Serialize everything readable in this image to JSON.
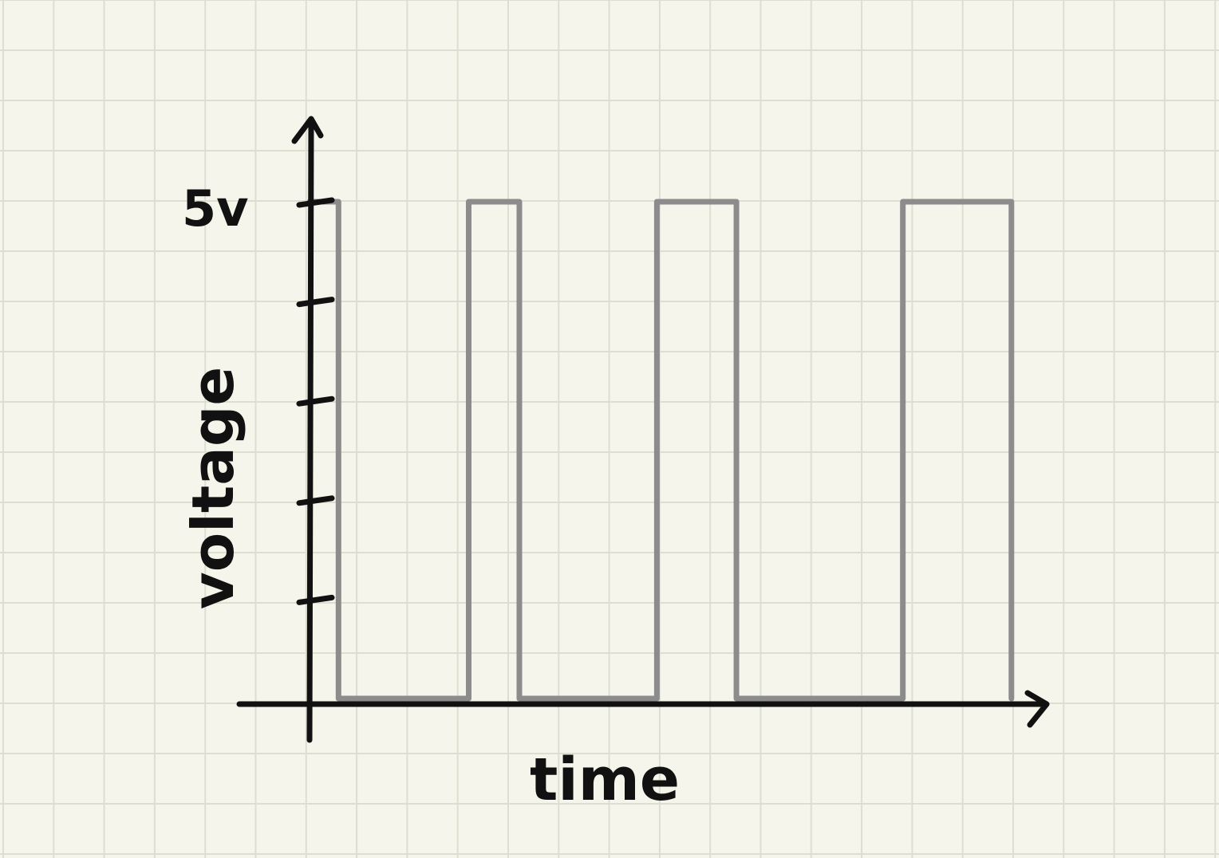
{
  "chart_data": {
    "type": "line",
    "title": "",
    "xlabel": "time",
    "ylabel": "voltage",
    "y_tick_labels": [
      {
        "value": 5,
        "label": "5v"
      }
    ],
    "y_ticks": [
      1,
      2,
      3,
      4,
      5
    ],
    "ylim": [
      0,
      5
    ],
    "xlim": [
      0,
      100
    ],
    "series": [
      {
        "x": [
          0,
          4,
          4,
          22,
          22,
          29,
          29,
          48,
          48,
          59,
          59,
          82,
          82,
          97,
          97
        ],
        "y": [
          5,
          5,
          0,
          0,
          5,
          5,
          0,
          0,
          5,
          5,
          0,
          0,
          5,
          5,
          0
        ]
      }
    ],
    "grid": true,
    "colors": {
      "background": "#f5f5eb",
      "grid": "#dcdfd0",
      "axis": "#111111",
      "signal": "#8c8c8c"
    }
  }
}
